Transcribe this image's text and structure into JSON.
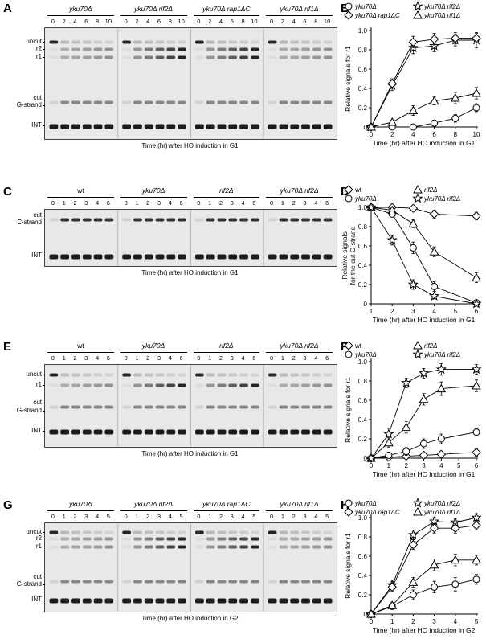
{
  "blots": [
    {
      "id": "A",
      "letter": "A",
      "groups": [
        {
          "title": "yku70Δ",
          "lanes": [
            "0",
            "2",
            "4",
            "6",
            "8",
            "10"
          ],
          "italic": true
        },
        {
          "title": "yku70Δ rif2Δ",
          "lanes": [
            "0",
            "2",
            "4",
            "6",
            "8",
            "10"
          ],
          "italic": true
        },
        {
          "title": "yku70Δ rap1ΔC",
          "lanes": [
            "0",
            "2",
            "4",
            "6",
            "8",
            "10"
          ],
          "italic": true
        },
        {
          "title": "yku70Δ rif1Δ",
          "lanes": [
            "0",
            "2",
            "4",
            "6",
            "8",
            "10"
          ],
          "italic": true
        }
      ],
      "labels": [
        "uncut",
        "r2",
        "r1",
        "cut",
        "G-strand",
        "INT"
      ],
      "caption": "Time (hr) after HO induction in G1"
    },
    {
      "id": "C",
      "letter": "C",
      "groups": [
        {
          "title": "wt",
          "lanes": [
            "0",
            "1",
            "2",
            "3",
            "4",
            "6"
          ],
          "italic": false
        },
        {
          "title": "yku70Δ",
          "lanes": [
            "0",
            "1",
            "2",
            "3",
            "4",
            "6"
          ],
          "italic": true
        },
        {
          "title": "rif2Δ",
          "lanes": [
            "0",
            "1",
            "2",
            "3",
            "4",
            "6"
          ],
          "italic": true
        },
        {
          "title": "yku70Δ rif2Δ",
          "lanes": [
            "0",
            "1",
            "2",
            "3",
            "4",
            "6"
          ],
          "italic": true
        }
      ],
      "labels": [
        "cut",
        "C-strand",
        "INT"
      ],
      "caption": "Time (hr) after HO induction in G1"
    },
    {
      "id": "E",
      "letter": "E",
      "groups": [
        {
          "title": "wt",
          "lanes": [
            "0",
            "1",
            "2",
            "3",
            "4",
            "6"
          ],
          "italic": false
        },
        {
          "title": "yku70Δ",
          "lanes": [
            "0",
            "1",
            "2",
            "3",
            "4",
            "6"
          ],
          "italic": true
        },
        {
          "title": "rif2Δ",
          "lanes": [
            "0",
            "1",
            "2",
            "3",
            "4",
            "6"
          ],
          "italic": true
        },
        {
          "title": "yku70Δ rif2Δ",
          "lanes": [
            "0",
            "1",
            "2",
            "3",
            "4",
            "6"
          ],
          "italic": true
        }
      ],
      "labels": [
        "uncut",
        "r1",
        "cut",
        "G-strand",
        "INT"
      ],
      "caption": "Time (hr) after HO induction in G1"
    },
    {
      "id": "G",
      "letter": "G",
      "groups": [
        {
          "title": "yku70Δ",
          "lanes": [
            "0",
            "1",
            "2",
            "3",
            "4",
            "5"
          ],
          "italic": true
        },
        {
          "title": "yku70Δ rif2Δ",
          "lanes": [
            "0",
            "1",
            "2",
            "3",
            "4",
            "5"
          ],
          "italic": true
        },
        {
          "title": "yku70Δ rap1ΔC",
          "lanes": [
            "0",
            "1",
            "2",
            "3",
            "4",
            "5"
          ],
          "italic": true
        },
        {
          "title": "yku70Δ rif1Δ",
          "lanes": [
            "0",
            "1",
            "2",
            "3",
            "4",
            "5"
          ],
          "italic": true
        }
      ],
      "labels": [
        "uncut",
        "r2",
        "r1",
        "cut",
        "G-strand",
        "INT"
      ],
      "caption": "Time (hr) after HO induction in G2"
    }
  ],
  "chart_data": [
    {
      "id": "B",
      "letter": "B",
      "type": "line",
      "xlabel": "Time (hr) after HO induction in G1",
      "ylabel": "Relative signals for r1",
      "xlim": [
        0,
        10
      ],
      "ylim": [
        0,
        1.0
      ],
      "xticks": [
        "0",
        "2",
        "4",
        "6",
        "8",
        "10"
      ],
      "yticks": [
        "0",
        "0.2",
        "0.4",
        "0.6",
        "0.8",
        "1.0"
      ],
      "legend": "top, two columns",
      "series": [
        {
          "name": "yku70Δ",
          "marker": "circle",
          "x": [
            0,
            2,
            4,
            6,
            8,
            10
          ],
          "y": [
            0,
            0,
            0,
            0.04,
            0.09,
            0.2
          ],
          "err": [
            0,
            0.01,
            0.01,
            0.03,
            0.04,
            0.04
          ]
        },
        {
          "name": "yku70Δ rif2Δ",
          "marker": "star",
          "x": [
            0,
            2,
            4,
            6,
            8,
            10
          ],
          "y": [
            0,
            0.43,
            0.82,
            0.84,
            0.9,
            0.9
          ],
          "err": [
            0,
            0.05,
            0.06,
            0.06,
            0.06,
            0.08
          ]
        },
        {
          "name": "yku70Δ rap1ΔC",
          "marker": "diamond",
          "x": [
            0,
            2,
            4,
            6,
            8,
            10
          ],
          "y": [
            0,
            0.45,
            0.88,
            0.91,
            0.92,
            0.92
          ],
          "err": [
            0,
            0.05,
            0.06,
            0.06,
            0.06,
            0.05
          ]
        },
        {
          "name": "yku70Δ rif1Δ",
          "marker": "triangle",
          "x": [
            0,
            2,
            4,
            6,
            8,
            10
          ],
          "y": [
            0,
            0.05,
            0.17,
            0.27,
            0.3,
            0.35
          ],
          "err": [
            0,
            0.02,
            0.05,
            0.04,
            0.06,
            0.06
          ]
        }
      ]
    },
    {
      "id": "D",
      "letter": "D",
      "type": "line",
      "xlabel": "Time (hr) after HO induction in G1",
      "ylabel": "Relative signals for the cut C-strand",
      "xlim": [
        1,
        6
      ],
      "ylim": [
        0,
        1.0
      ],
      "xticks": [
        "1",
        "2",
        "3",
        "4",
        "5",
        "6"
      ],
      "yticks": [
        "0",
        "0.2",
        "0.4",
        "0.6",
        "0.8",
        "1.0"
      ],
      "legend": "top, two columns",
      "series": [
        {
          "name": "wt",
          "marker": "diamond",
          "x": [
            1,
            2,
            3,
            4,
            6
          ],
          "y": [
            1.0,
            1.0,
            0.99,
            0.93,
            0.91
          ],
          "err": [
            0,
            0.01,
            0.02,
            0.04,
            0.04
          ]
        },
        {
          "name": "rif2Δ",
          "marker": "triangle",
          "x": [
            1,
            2,
            3,
            4,
            6
          ],
          "y": [
            1.0,
            0.97,
            0.83,
            0.54,
            0.27
          ],
          "err": [
            0,
            0.02,
            0.04,
            0.05,
            0.05
          ]
        },
        {
          "name": "yku70Δ",
          "marker": "circle",
          "x": [
            1,
            2,
            3,
            4,
            6
          ],
          "y": [
            1.0,
            0.93,
            0.58,
            0.18,
            0.01
          ],
          "err": [
            0,
            0.03,
            0.06,
            0.05,
            0.02
          ]
        },
        {
          "name": "yku70Δ rif2Δ",
          "marker": "star",
          "x": [
            1,
            2,
            3,
            4,
            6
          ],
          "y": [
            1.0,
            0.66,
            0.2,
            0.08,
            0.0
          ],
          "err": [
            0,
            0.05,
            0.05,
            0.03,
            0.01
          ]
        }
      ]
    },
    {
      "id": "F",
      "letter": "F",
      "type": "line",
      "xlabel": "Time (hr) after HO induction in G1",
      "ylabel": "Relative signals for r1",
      "xlim": [
        0,
        6
      ],
      "ylim": [
        0,
        1.0
      ],
      "xticks": [
        "0",
        "1",
        "2",
        "3",
        "4",
        "5",
        "6"
      ],
      "yticks": [
        "0",
        "0.2",
        "0.4",
        "0.6",
        "0.8",
        "1.0"
      ],
      "legend": "top, two columns",
      "series": [
        {
          "name": "wt",
          "marker": "diamond",
          "x": [
            0,
            1,
            2,
            3,
            4,
            6
          ],
          "y": [
            0,
            0.01,
            0.02,
            0.03,
            0.04,
            0.06
          ],
          "err": [
            0,
            0.01,
            0.02,
            0.02,
            0.03,
            0.04
          ]
        },
        {
          "name": "rif2Δ",
          "marker": "triangle",
          "x": [
            0,
            1,
            2,
            3,
            4,
            6
          ],
          "y": [
            0,
            0.16,
            0.32,
            0.61,
            0.72,
            0.75
          ],
          "err": [
            0,
            0.05,
            0.06,
            0.06,
            0.07,
            0.06
          ]
        },
        {
          "name": "yku70Δ",
          "marker": "circle",
          "x": [
            0,
            1,
            2,
            3,
            4,
            6
          ],
          "y": [
            0,
            0.03,
            0.07,
            0.15,
            0.2,
            0.27
          ],
          "err": [
            0,
            0.02,
            0.04,
            0.05,
            0.05,
            0.04
          ]
        },
        {
          "name": "yku70Δ rif2Δ",
          "marker": "star",
          "x": [
            0,
            1,
            2,
            3,
            4,
            6
          ],
          "y": [
            0,
            0.25,
            0.78,
            0.88,
            0.92,
            0.92
          ],
          "err": [
            0,
            0.06,
            0.05,
            0.05,
            0.06,
            0.05
          ]
        }
      ]
    },
    {
      "id": "H",
      "letter": "H",
      "type": "line",
      "xlabel": "Time (hr) after HO induction in G2",
      "ylabel": "Relative signals for r1",
      "xlim": [
        0,
        5
      ],
      "ylim": [
        0,
        1.0
      ],
      "xticks": [
        "0",
        "1",
        "2",
        "3",
        "4",
        "5"
      ],
      "yticks": [
        "0",
        "0.2",
        "0.4",
        "0.6",
        "0.8",
        "1.0"
      ],
      "legend": "top, two columns",
      "series": [
        {
          "name": "yku70Δ",
          "marker": "circle",
          "x": [
            0,
            1,
            2,
            3,
            4,
            5
          ],
          "y": [
            0,
            0.08,
            0.2,
            0.28,
            0.31,
            0.36
          ],
          "err": [
            0,
            0.02,
            0.05,
            0.06,
            0.07,
            0.05
          ]
        },
        {
          "name": "yku70Δ rif2Δ",
          "marker": "star",
          "x": [
            0,
            1,
            2,
            3,
            4,
            5
          ],
          "y": [
            0,
            0.3,
            0.82,
            0.96,
            0.95,
            1.0
          ],
          "err": [
            0,
            0.04,
            0.05,
            0.04,
            0.04,
            0.04
          ]
        },
        {
          "name": "yku70Δ rap1ΔC",
          "marker": "diamond",
          "x": [
            0,
            1,
            2,
            3,
            4,
            5
          ],
          "y": [
            0,
            0.28,
            0.72,
            0.89,
            0.89,
            0.92
          ],
          "err": [
            0,
            0.04,
            0.05,
            0.05,
            0.05,
            0.05
          ]
        },
        {
          "name": "yku70Δ rif1Δ",
          "marker": "triangle",
          "x": [
            0,
            1,
            2,
            3,
            4,
            5
          ],
          "y": [
            0,
            0.09,
            0.33,
            0.51,
            0.56,
            0.56
          ],
          "err": [
            0,
            0.03,
            0.05,
            0.06,
            0.06,
            0.05
          ]
        }
      ]
    }
  ]
}
